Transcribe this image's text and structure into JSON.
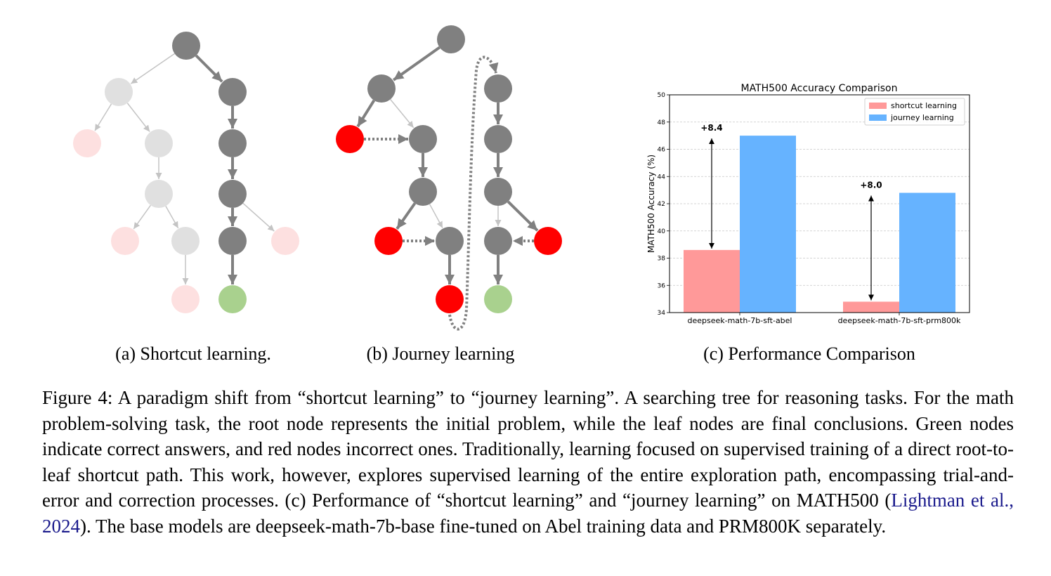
{
  "subfigure_captions": [
    "(a) Shortcut learning.",
    "(b) Journey learning",
    "(c) Performance Comparison"
  ],
  "chart_data": {
    "type": "bar",
    "title": "MATH500 Accuracy Comparison",
    "y_label": "MATH500 Accuracy (%)",
    "categories": [
      "deepseek-math-7b-sft-abel",
      "deepseek-math-7b-sft-prm800k"
    ],
    "series": [
      {
        "name": "shortcut learning",
        "color": "#ff9999",
        "values": [
          38.6,
          34.8
        ]
      },
      {
        "name": "journey learning",
        "color": "#66b3ff",
        "values": [
          47.0,
          42.8
        ]
      }
    ],
    "annotations": [
      "+8.4",
      "+8.0"
    ],
    "ylim": [
      34,
      50
    ],
    "yticks": [
      34,
      36,
      38,
      40,
      42,
      44,
      46,
      48,
      50
    ],
    "grid": true,
    "legend": "upper right"
  },
  "figure_caption": {
    "label": "Figure 4:",
    "text_before": "A paradigm shift from “shortcut learning” to “journey learning”. A searching tree for reasoning tasks. For the math problem-solving task, the root node represents the initial problem, while the leaf nodes are final conclusions. Green nodes indicate correct answers, and red nodes incorrect ones. Traditionally, learning focused on supervised training of a direct root-to-leaf shortcut path. This work, however, explores supervised learning of the entire exploration path, encompassing trial-and-error and correction processes. (c) Performance of “shortcut learning” and “journey learning” on MATH500 (",
    "citation": "Lightman et al., 2024",
    "text_after": "). The base models are deepseek-math-7b-base fine-tuned on Abel training data and PRM800K separately."
  }
}
